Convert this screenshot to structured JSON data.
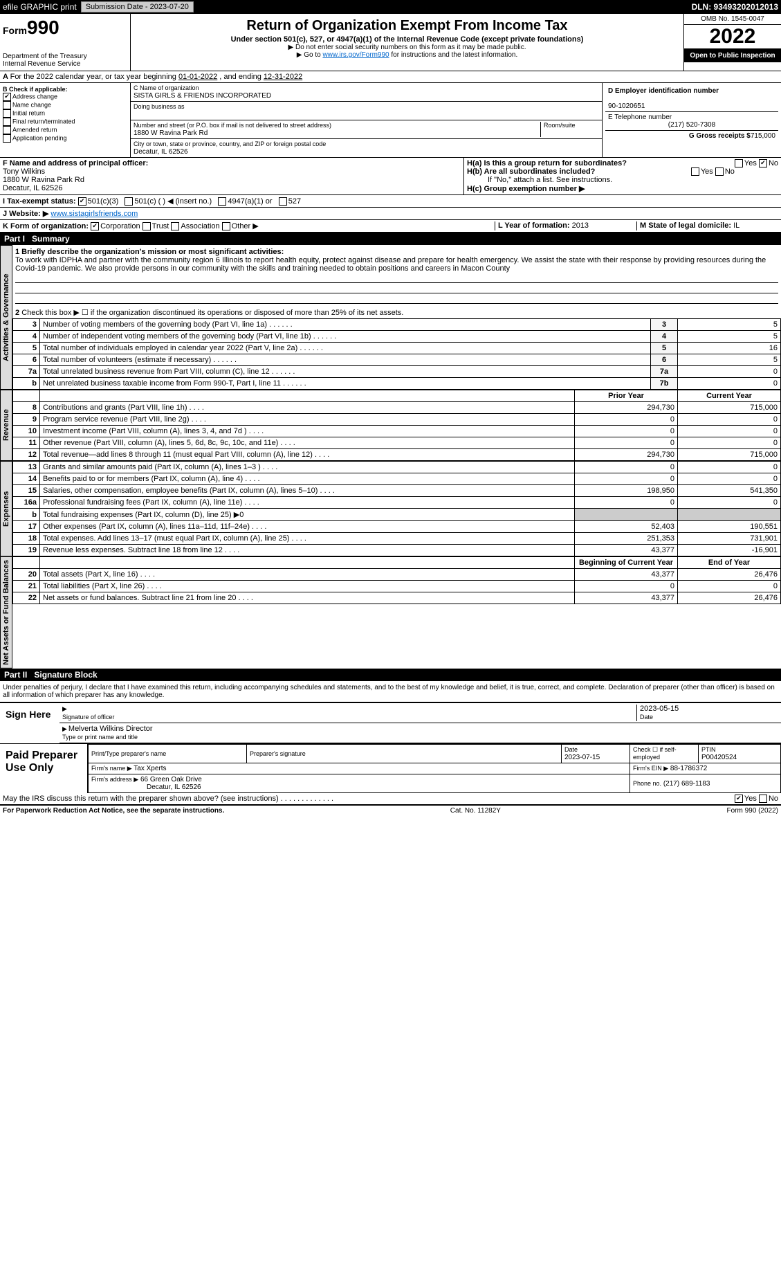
{
  "topbar": {
    "efile_label": "efile GRAPHIC print",
    "submission_label": "Submission Date - 2023-07-20",
    "dln_label": "DLN: 93493202012013"
  },
  "header": {
    "form_label": "Form",
    "form_number": "990",
    "dept": "Department of the Treasury",
    "irs": "Internal Revenue Service",
    "title": "Return of Organization Exempt From Income Tax",
    "subtitle": "Under section 501(c), 527, or 4947(a)(1) of the Internal Revenue Code (except private foundations)",
    "note1": "▶ Do not enter social security numbers on this form as it may be made public.",
    "note2_pre": "▶ Go to ",
    "note2_link": "www.irs.gov/Form990",
    "note2_post": " for instructions and the latest information.",
    "omb": "OMB No. 1545-0047",
    "year": "2022",
    "open": "Open to Public Inspection"
  },
  "line_a": {
    "text_pre": "For the 2022 calendar year, or tax year beginning ",
    "begin": "01-01-2022",
    "mid": " , and ending ",
    "end": "12-31-2022"
  },
  "b": {
    "label": "B Check if applicable:",
    "addr": "Address change",
    "name": "Name change",
    "init": "Initial return",
    "final": "Final return/terminated",
    "amend": "Amended return",
    "app": "Application pending"
  },
  "c": {
    "c_label": "C Name of organization",
    "org_name": "SISTA GIRLS & FRIENDS INCORPORATED",
    "dba_label": "Doing business as",
    "addr_label": "Number and street (or P.O. box if mail is not delivered to street address)",
    "room_label": "Room/suite",
    "addr": "1880 W Ravina Park Rd",
    "city_label": "City or town, state or province, country, and ZIP or foreign postal code",
    "city": "Decatur, IL  62526"
  },
  "d": {
    "label": "D Employer identification number",
    "ein": "90-1020651"
  },
  "e": {
    "label": "E Telephone number",
    "phone": "(217) 520-7308"
  },
  "g": {
    "label": "G Gross receipts $",
    "val": "715,000"
  },
  "f": {
    "label": "F Name and address of principal officer:",
    "name": "Tony Wilkins",
    "addr1": "1880 W Ravina Park Rd",
    "addr2": "Decatur, IL  62526"
  },
  "h": {
    "a_label": "H(a)  Is this a group return for subordinates?",
    "b_label": "H(b)  Are all subordinates included?",
    "b_note": "If \"No,\" attach a list. See instructions.",
    "c_label": "H(c)  Group exemption number ▶",
    "yes": "Yes",
    "no": "No"
  },
  "i": {
    "label": "I Tax-exempt status:",
    "o1": "501(c)(3)",
    "o2": "501(c) (  ) ◀ (insert no.)",
    "o3": "4947(a)(1) or",
    "o4": "527"
  },
  "j": {
    "label": "J Website: ▶",
    "url": "www.sistagirlsfriends.com"
  },
  "k": {
    "label": "K Form of organization:",
    "corp": "Corporation",
    "trust": "Trust",
    "assoc": "Association",
    "other": "Other ▶"
  },
  "l": {
    "label": "L Year of formation:",
    "val": "2013"
  },
  "m": {
    "label": "M State of legal domicile:",
    "val": "IL"
  },
  "part1": {
    "label": "Part I",
    "title": "Summary",
    "q1": "1 Briefly describe the organization's mission or most significant activities:",
    "mission": "To work with IDPHA and partner with the community region 6 Illinois to report health equity, protect against disease and prepare for health emergency. We assist the state with their response by providing resources during the Covid-19 pandemic. We also provide persons in our community with the skills and training needed to obtain positions and careers in Macon County",
    "q2": "Check this box ▶ ☐ if the organization discontinued its operations or disposed of more than 25% of its net assets.",
    "sidebar_ag": "Activities & Governance",
    "sidebar_rev": "Revenue",
    "sidebar_exp": "Expenses",
    "sidebar_na": "Net Assets or Fund Balances",
    "prior_year": "Prior Year",
    "current_year": "Current Year",
    "begin_year": "Beginning of Current Year",
    "end_year": "End of Year"
  },
  "lines_ag": [
    {
      "n": "3",
      "d": "Number of voting members of the governing body (Part VI, line 1a)",
      "b": "3",
      "v": "5"
    },
    {
      "n": "4",
      "d": "Number of independent voting members of the governing body (Part VI, line 1b)",
      "b": "4",
      "v": "5"
    },
    {
      "n": "5",
      "d": "Total number of individuals employed in calendar year 2022 (Part V, line 2a)",
      "b": "5",
      "v": "16"
    },
    {
      "n": "6",
      "d": "Total number of volunteers (estimate if necessary)",
      "b": "6",
      "v": "5"
    },
    {
      "n": "7a",
      "d": "Total unrelated business revenue from Part VIII, column (C), line 12",
      "b": "7a",
      "v": "0"
    },
    {
      "n": "b",
      "d": "Net unrelated business taxable income from Form 990-T, Part I, line 11",
      "b": "7b",
      "v": "0"
    }
  ],
  "lines_rev": [
    {
      "n": "8",
      "d": "Contributions and grants (Part VIII, line 1h)",
      "p": "294,730",
      "c": "715,000"
    },
    {
      "n": "9",
      "d": "Program service revenue (Part VIII, line 2g)",
      "p": "0",
      "c": "0"
    },
    {
      "n": "10",
      "d": "Investment income (Part VIII, column (A), lines 3, 4, and 7d )",
      "p": "0",
      "c": "0"
    },
    {
      "n": "11",
      "d": "Other revenue (Part VIII, column (A), lines 5, 6d, 8c, 9c, 10c, and 11e)",
      "p": "0",
      "c": "0"
    },
    {
      "n": "12",
      "d": "Total revenue—add lines 8 through 11 (must equal Part VIII, column (A), line 12)",
      "p": "294,730",
      "c": "715,000"
    }
  ],
  "lines_exp": [
    {
      "n": "13",
      "d": "Grants and similar amounts paid (Part IX, column (A), lines 1–3 )",
      "p": "0",
      "c": "0"
    },
    {
      "n": "14",
      "d": "Benefits paid to or for members (Part IX, column (A), line 4)",
      "p": "0",
      "c": "0"
    },
    {
      "n": "15",
      "d": "Salaries, other compensation, employee benefits (Part IX, column (A), lines 5–10)",
      "p": "198,950",
      "c": "541,350"
    },
    {
      "n": "16a",
      "d": "Professional fundraising fees (Part IX, column (A), line 11e)",
      "p": "0",
      "c": "0"
    },
    {
      "n": "b",
      "d": "Total fundraising expenses (Part IX, column (D), line 25) ▶0",
      "shade": true
    },
    {
      "n": "17",
      "d": "Other expenses (Part IX, column (A), lines 11a–11d, 11f–24e)",
      "p": "52,403",
      "c": "190,551"
    },
    {
      "n": "18",
      "d": "Total expenses. Add lines 13–17 (must equal Part IX, column (A), line 25)",
      "p": "251,353",
      "c": "731,901"
    },
    {
      "n": "19",
      "d": "Revenue less expenses. Subtract line 18 from line 12",
      "p": "43,377",
      "c": "-16,901"
    }
  ],
  "lines_na": [
    {
      "n": "20",
      "d": "Total assets (Part X, line 16)",
      "p": "43,377",
      "c": "26,476"
    },
    {
      "n": "21",
      "d": "Total liabilities (Part X, line 26)",
      "p": "0",
      "c": "0"
    },
    {
      "n": "22",
      "d": "Net assets or fund balances. Subtract line 21 from line 20",
      "p": "43,377",
      "c": "26,476"
    }
  ],
  "part2": {
    "label": "Part II",
    "title": "Signature Block",
    "decl": "Under penalties of perjury, I declare that I have examined this return, including accompanying schedules and statements, and to the best of my knowledge and belief, it is true, correct, and complete. Declaration of preparer (other than officer) is based on all information of which preparer has any knowledge."
  },
  "sign": {
    "here": "Sign Here",
    "sig_label": "Signature of officer",
    "date": "2023-05-15",
    "date_label": "Date",
    "name": "Melverta Wilkins  Director",
    "name_label": "Type or print name and title"
  },
  "paid": {
    "label": "Paid Preparer Use Only",
    "h1": "Print/Type preparer's name",
    "h2": "Preparer's signature",
    "h3": "Date",
    "h3v": "2023-07-15",
    "h4": "Check ☐ if self-employed",
    "h5": "PTIN",
    "h5v": "P00420524",
    "firm_name_label": "Firm's name    ▶",
    "firm_name": "Tax Xperts",
    "firm_ein_label": "Firm's EIN ▶",
    "firm_ein": "88-1786372",
    "firm_addr_label": "Firm's address ▶",
    "firm_addr1": "66 Green Oak Drive",
    "firm_addr2": "Decatur, IL  62526",
    "phone_label": "Phone no.",
    "phone": "(217) 689-1183",
    "discuss": "May the IRS discuss this return with the preparer shown above? (see instructions)",
    "yes": "Yes",
    "no": "No"
  },
  "footer": {
    "left": "For Paperwork Reduction Act Notice, see the separate instructions.",
    "mid": "Cat. No. 11282Y",
    "right": "Form 990 (2022)"
  }
}
